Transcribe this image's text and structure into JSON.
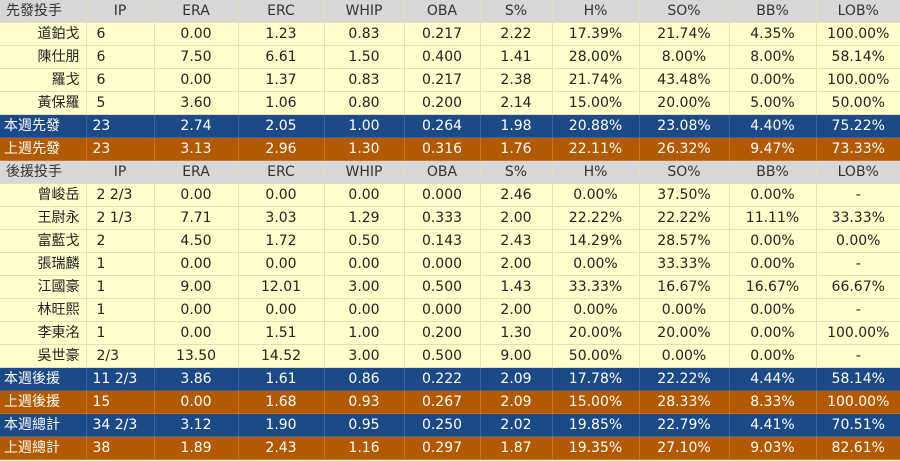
{
  "columns": [
    "IP",
    "ERA",
    "ERC",
    "WHIP",
    "OBA",
    "S%",
    "H%",
    "SO%",
    "BB%",
    "LOB%"
  ],
  "sections": [
    {
      "header": "先發投手",
      "rows": [
        {
          "name": "道鉑戈",
          "ip": "6",
          "vals": [
            "0.00",
            "1.23",
            "0.83",
            "0.217",
            "2.22",
            "17.39%",
            "21.74%",
            "4.35%",
            "100.00%"
          ]
        },
        {
          "name": "陳仕朋",
          "ip": "6",
          "vals": [
            "7.50",
            "6.61",
            "1.50",
            "0.400",
            "1.41",
            "28.00%",
            "8.00%",
            "8.00%",
            "58.14%"
          ]
        },
        {
          "name": "羅戈",
          "ip": "6",
          "vals": [
            "0.00",
            "1.37",
            "0.83",
            "0.217",
            "2.38",
            "21.74%",
            "43.48%",
            "0.00%",
            "100.00%"
          ]
        },
        {
          "name": "黃保羅",
          "ip": "5",
          "vals": [
            "3.60",
            "1.06",
            "0.80",
            "0.200",
            "2.14",
            "15.00%",
            "20.00%",
            "5.00%",
            "50.00%"
          ]
        }
      ],
      "totals": [
        {
          "name": "本週先發",
          "ip": "23",
          "color": "blue",
          "vals": [
            "2.74",
            "2.05",
            "1.00",
            "0.264",
            "1.98",
            "20.88%",
            "23.08%",
            "4.40%",
            "75.22%"
          ]
        },
        {
          "name": "上週先發",
          "ip": "23",
          "color": "orange",
          "vals": [
            "3.13",
            "2.96",
            "1.30",
            "0.316",
            "1.76",
            "22.11%",
            "26.32%",
            "9.47%",
            "73.33%"
          ]
        }
      ]
    },
    {
      "header": "後援投手",
      "rows": [
        {
          "name": "曾峻岳",
          "ip": "2 2/3",
          "vals": [
            "0.00",
            "0.00",
            "0.00",
            "0.000",
            "2.46",
            "0.00%",
            "37.50%",
            "0.00%",
            "-"
          ]
        },
        {
          "name": "王尉永",
          "ip": "2 1/3",
          "vals": [
            "7.71",
            "3.03",
            "1.29",
            "0.333",
            "2.00",
            "22.22%",
            "22.22%",
            "11.11%",
            "33.33%"
          ]
        },
        {
          "name": "富藍戈",
          "ip": "2",
          "vals": [
            "4.50",
            "1.72",
            "0.50",
            "0.143",
            "2.43",
            "14.29%",
            "28.57%",
            "0.00%",
            "0.00%"
          ]
        },
        {
          "name": "張瑞麟",
          "ip": "1",
          "vals": [
            "0.00",
            "0.00",
            "0.00",
            "0.000",
            "2.00",
            "0.00%",
            "33.33%",
            "0.00%",
            "-"
          ]
        },
        {
          "name": "江國豪",
          "ip": "1",
          "vals": [
            "9.00",
            "12.01",
            "3.00",
            "0.500",
            "1.43",
            "33.33%",
            "16.67%",
            "16.67%",
            "66.67%"
          ]
        },
        {
          "name": "林旺熙",
          "ip": "1",
          "vals": [
            "0.00",
            "0.00",
            "0.00",
            "0.000",
            "2.00",
            "0.00%",
            "0.00%",
            "0.00%",
            "-"
          ]
        },
        {
          "name": "李東洺",
          "ip": "1",
          "vals": [
            "0.00",
            "1.51",
            "1.00",
            "0.200",
            "1.30",
            "20.00%",
            "20.00%",
            "0.00%",
            "100.00%"
          ]
        },
        {
          "name": "吳世豪",
          "ip": "  2/3",
          "vals": [
            "13.50",
            "14.52",
            "3.00",
            "0.500",
            "9.00",
            "50.00%",
            "0.00%",
            "0.00%",
            "-"
          ]
        }
      ],
      "totals": [
        {
          "name": "本週後援",
          "ip": "11 2/3",
          "color": "blue",
          "vals": [
            "3.86",
            "1.61",
            "0.86",
            "0.222",
            "2.09",
            "17.78%",
            "22.22%",
            "4.44%",
            "58.14%"
          ]
        },
        {
          "name": "上週後援",
          "ip": "15",
          "color": "orange",
          "vals": [
            "0.00",
            "1.68",
            "0.93",
            "0.267",
            "2.09",
            "15.00%",
            "28.33%",
            "8.33%",
            "100.00%"
          ]
        },
        {
          "name": "本週總計",
          "ip": "34 2/3",
          "color": "blue",
          "vals": [
            "3.12",
            "1.90",
            "0.95",
            "0.250",
            "2.02",
            "19.85%",
            "22.79%",
            "4.41%",
            "70.51%"
          ]
        },
        {
          "name": "上週總計",
          "ip": "38",
          "color": "orange",
          "vals": [
            "1.89",
            "2.43",
            "1.16",
            "0.297",
            "1.87",
            "19.35%",
            "27.10%",
            "9.03%",
            "82.61%"
          ]
        }
      ]
    }
  ]
}
